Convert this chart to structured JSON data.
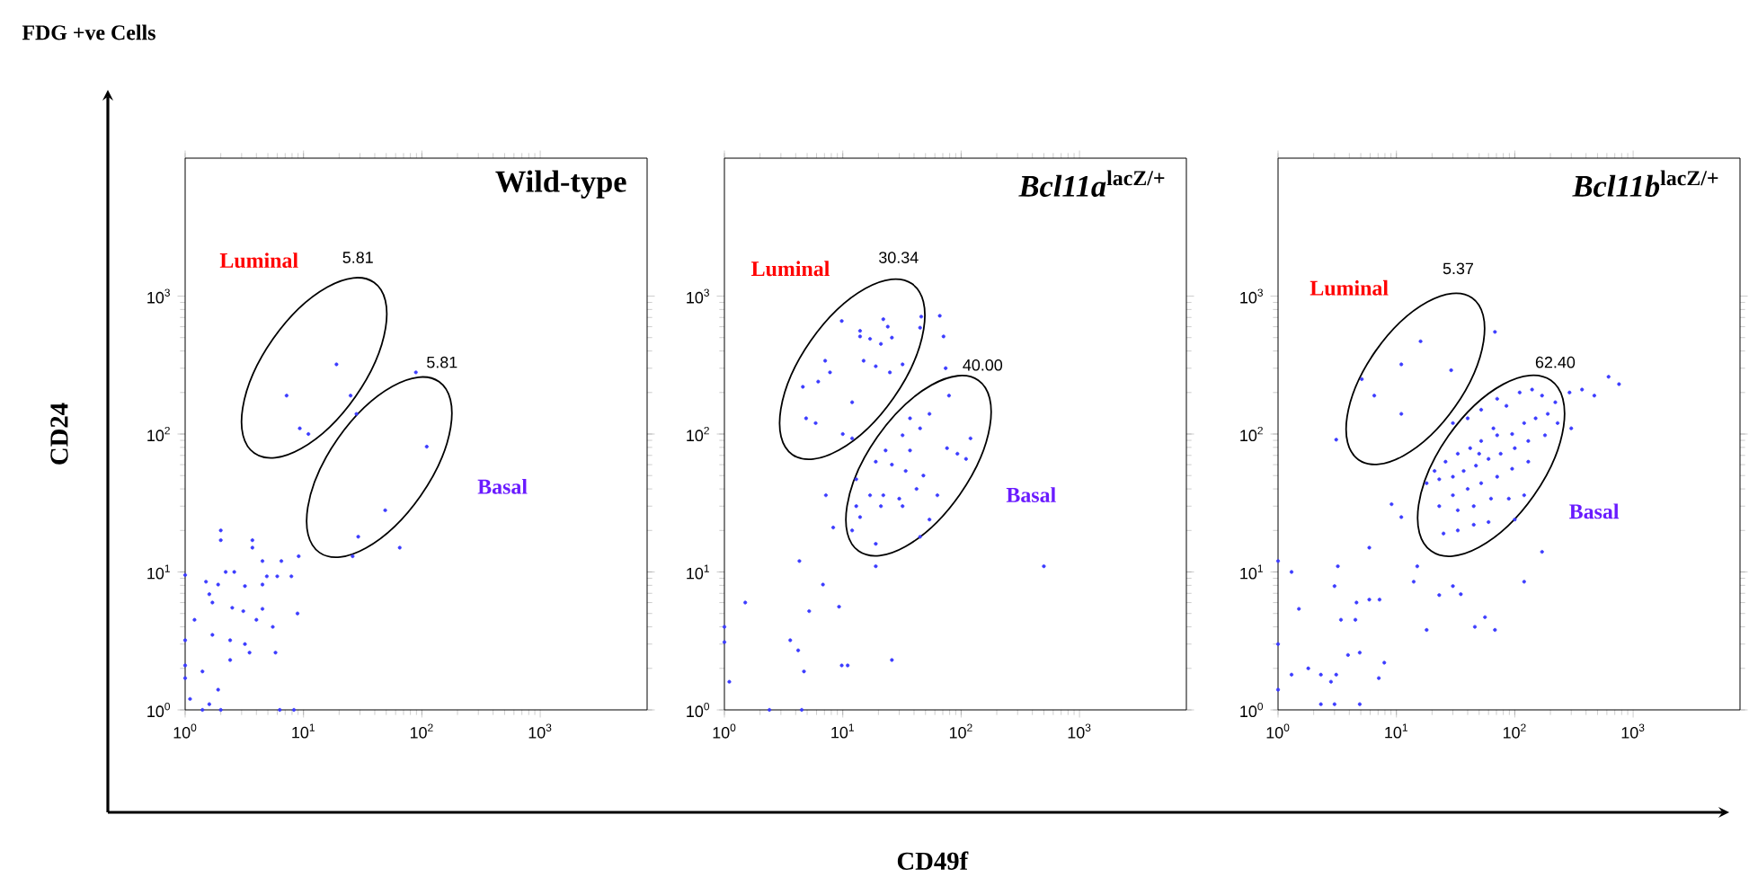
{
  "chart_data": [
    {
      "type": "scatter",
      "title": "Wild-type",
      "ylabel": "CD24",
      "color": "#3b3bff",
      "log": "xy",
      "xlim": [
        1,
        8000
      ],
      "ylim": [
        1,
        10000
      ],
      "xticks": [
        {
          "value": 1,
          "label": "10$^{0}$"
        },
        {
          "value": 10,
          "label": "10$^{1}$"
        },
        {
          "value": 100,
          "label": "10$^{2}$"
        },
        {
          "value": 1000,
          "label": "10$^{3}$"
        }
      ],
      "yticks": [
        {
          "value": 1,
          "label": "10$^{0}$"
        },
        {
          "value": 10,
          "label": "10$^{1}$"
        },
        {
          "value": 100,
          "label": "10$^{2}$"
        },
        {
          "value": 1000,
          "label": "10$^{3}$"
        }
      ],
      "annotations": [
        "FDG +ve Cells",
        "Luminal",
        "5.81",
        "5.81",
        "Basal"
      ],
      "x": [
        19,
        7.2,
        25,
        28,
        9.3,
        11,
        89,
        110,
        49,
        29,
        65,
        26,
        2.0,
        2.0,
        3.7,
        3.7,
        4.5,
        6.5,
        9.1,
        1.5,
        2.2,
        2.6,
        1.9,
        3.2,
        4.5,
        4.9,
        6.0,
        7.9,
        1.6,
        1.7,
        2.5,
        3.1,
        4.5,
        4.0,
        5.5,
        8.9,
        1.2,
        1.7,
        2.4,
        3.2,
        3.5,
        5.8,
        2.4,
        1.4,
        1.0,
        1.0,
        1.0,
        1.0,
        1.9,
        1.1,
        1.6,
        6.3,
        8.3,
        1.4,
        2.0
      ],
      "values": [
        320,
        190,
        190,
        140,
        110,
        100,
        280,
        81,
        28,
        18,
        15,
        13,
        20,
        17,
        17,
        15,
        12,
        12,
        13,
        8.5,
        10,
        10,
        8.1,
        7.9,
        8.1,
        9.3,
        9.3,
        9.3,
        6.9,
        6.0,
        5.5,
        5.2,
        5.4,
        4.5,
        4.0,
        5.0,
        4.5,
        3.5,
        3.2,
        3.0,
        2.6,
        2.6,
        2.3,
        1.9,
        3.2,
        2.1,
        1.7,
        9.5,
        1.4,
        1.2,
        1.1,
        1.0,
        1.0,
        1.0,
        1.0
      ]
    },
    {
      "type": "scatter",
      "title": "*Bcl11a*$^{lacZ/+}$",
      "xlabel": "CD49f",
      "color": "#3b3bff",
      "log": "xy",
      "xlim": [
        1,
        8000
      ],
      "ylim": [
        1,
        10000
      ],
      "xticks": [
        {
          "value": 1,
          "label": "10$^{0}$"
        },
        {
          "value": 10,
          "label": "10$^{1}$"
        },
        {
          "value": 100,
          "label": "10$^{2}$"
        },
        {
          "value": 1000,
          "label": "10$^{3}$"
        }
      ],
      "yticks": [
        {
          "value": 1,
          "label": "10$^{0}$"
        },
        {
          "value": 10,
          "label": "10$^{1}$"
        },
        {
          "value": 100,
          "label": "10$^{2}$"
        },
        {
          "value": 1000,
          "label": "10$^{3}$"
        }
      ],
      "annotations": [
        "Luminal",
        "30.34",
        "40.00",
        "Basal"
      ],
      "x": [
        9.8,
        14,
        22,
        24,
        46,
        14,
        17,
        21,
        26,
        45,
        7.1,
        15,
        19,
        25,
        32,
        4.6,
        6.2,
        7.8,
        12,
        4.9,
        5.9,
        10,
        12,
        37,
        66,
        71,
        74,
        79,
        54,
        45,
        32,
        23,
        37,
        76,
        120,
        110,
        93,
        19,
        26,
        34,
        48,
        13,
        17,
        22,
        30,
        42,
        63,
        13,
        14,
        21,
        32,
        54,
        45,
        12,
        19,
        19,
        7.2,
        8.3,
        500,
        4.3,
        6.8,
        1.5,
        5.2,
        9.3,
        3.6,
        4.2,
        4.7,
        9.8,
        11,
        26,
        1.1,
        1.0,
        1.0,
        2.4,
        4.5
      ],
      "values": [
        660,
        560,
        680,
        600,
        710,
        510,
        490,
        450,
        500,
        590,
        340,
        340,
        310,
        280,
        320,
        220,
        240,
        280,
        170,
        130,
        120,
        100,
        93,
        130,
        720,
        510,
        300,
        190,
        140,
        110,
        98,
        76,
        76,
        79,
        93,
        66,
        72,
        63,
        60,
        54,
        50,
        47,
        36,
        36,
        34,
        40,
        36,
        30,
        25,
        30,
        30,
        24,
        18,
        20,
        16,
        11,
        36,
        21,
        11,
        12,
        8.1,
        6.0,
        5.2,
        5.6,
        3.2,
        2.7,
        1.9,
        2.1,
        2.1,
        2.3,
        1.6,
        4.0,
        3.1,
        1.0,
        1.0
      ]
    },
    {
      "type": "scatter",
      "title": "*Bcl11b*$^{lacZ/+}$",
      "color": "#3b3bff",
      "log": "xy",
      "xlim": [
        1,
        8000
      ],
      "ylim": [
        1,
        10000
      ],
      "xticks": [
        {
          "value": 1,
          "label": "10$^{0}$"
        },
        {
          "value": 10,
          "label": "10$^{1}$"
        },
        {
          "value": 100,
          "label": "10$^{2}$"
        },
        {
          "value": 1000,
          "label": "10$^{3}$"
        }
      ],
      "yticks": [
        {
          "value": 1,
          "label": "10$^{0}$"
        },
        {
          "value": 10,
          "label": "10$^{1}$"
        },
        {
          "value": 100,
          "label": "10$^{2}$"
        },
        {
          "value": 1000,
          "label": "10$^{3}$"
        }
      ],
      "annotations": [
        "Luminal",
        "5.37",
        "62.40",
        "Basal"
      ],
      "x": [
        16,
        11,
        29,
        68,
        5.1,
        6.5,
        11,
        3.1,
        30,
        40,
        52,
        71,
        85,
        110,
        140,
        170,
        220,
        190,
        150,
        120,
        95,
        71,
        52,
        42,
        33,
        26,
        21,
        23,
        30,
        37,
        47,
        60,
        76,
        100,
        130,
        180,
        230,
        130,
        95,
        71,
        52,
        40,
        30,
        23,
        33,
        45,
        63,
        89,
        120,
        45,
        33,
        25,
        60,
        100,
        50,
        66,
        18,
        290,
        370,
        470,
        620,
        760,
        300,
        170,
        120,
        9.1,
        11,
        5.9,
        15,
        14,
        23,
        30,
        35,
        3.2,
        3.0,
        4.6,
        5.9,
        7.2,
        1.5,
        3.4,
        4.5,
        18,
        56,
        46,
        68,
        1.3,
        1.0,
        1.0,
        3.9,
        4.9,
        7.9,
        1.3,
        1.8,
        2.3,
        2.8,
        3.1,
        7.1,
        1.0,
        2.3,
        3.0,
        4.9
      ],
      "values": [
        470,
        320,
        290,
        550,
        250,
        190,
        140,
        91,
        120,
        130,
        150,
        180,
        160,
        200,
        210,
        190,
        170,
        140,
        130,
        120,
        100,
        98,
        89,
        79,
        72,
        63,
        54,
        47,
        49,
        54,
        59,
        66,
        72,
        79,
        89,
        98,
        120,
        63,
        56,
        49,
        44,
        40,
        36,
        30,
        28,
        30,
        34,
        34,
        36,
        22,
        20,
        19,
        23,
        24,
        72,
        110,
        44,
        200,
        210,
        190,
        260,
        230,
        110,
        14,
        8.5,
        31,
        25,
        15,
        11,
        8.5,
        6.8,
        7.9,
        6.9,
        11,
        7.9,
        6.0,
        6.3,
        6.3,
        5.4,
        4.5,
        4.5,
        3.8,
        4.7,
        4.0,
        3.8,
        10,
        12,
        3.0,
        2.5,
        2.6,
        2.2,
        1.8,
        2.0,
        1.8,
        1.6,
        1.8,
        1.7,
        1.4,
        1.1,
        1.1,
        1.1
      ]
    }
  ]
}
